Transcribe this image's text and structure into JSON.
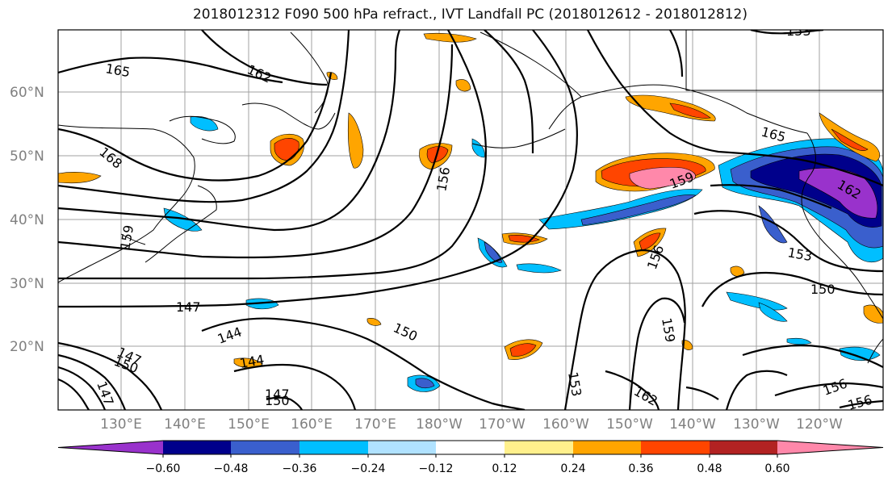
{
  "title": "2018012312 F090 500 hPa refract., IVT Landfall PC (2018012612 - 2018012812)",
  "lat_labels": [
    "60°N",
    "50°N",
    "40°N",
    "30°N",
    "20°N"
  ],
  "lon_labels": [
    "130°E",
    "140°E",
    "150°E",
    "160°E",
    "170°E",
    "180°W",
    "170°W",
    "160°W",
    "150°W",
    "140°W",
    "130°W",
    "120°W"
  ],
  "colorbar": {
    "tick_labels": [
      "−0.60",
      "−0.48",
      "−0.36",
      "−0.24",
      "−0.12",
      "0.12",
      "0.24",
      "0.36",
      "0.48",
      "0.60"
    ],
    "colors": [
      "#9932cc",
      "#00008b",
      "#3a5fcd",
      "#00bfff",
      "#b0e2ff",
      "#ffffff",
      "#fff08c",
      "#ffa500",
      "#ff4500",
      "#b22222",
      "#ff88aa"
    ]
  },
  "contour_labels": [
    "165",
    "162",
    "168",
    "156",
    "159",
    "147",
    "144",
    "150",
    "153",
    "165",
    "162",
    "159",
    "153",
    "150",
    "147",
    "144",
    "150",
    "147",
    "159",
    "156",
    "162",
    "156",
    "156",
    "147",
    "150",
    "153"
  ]
}
